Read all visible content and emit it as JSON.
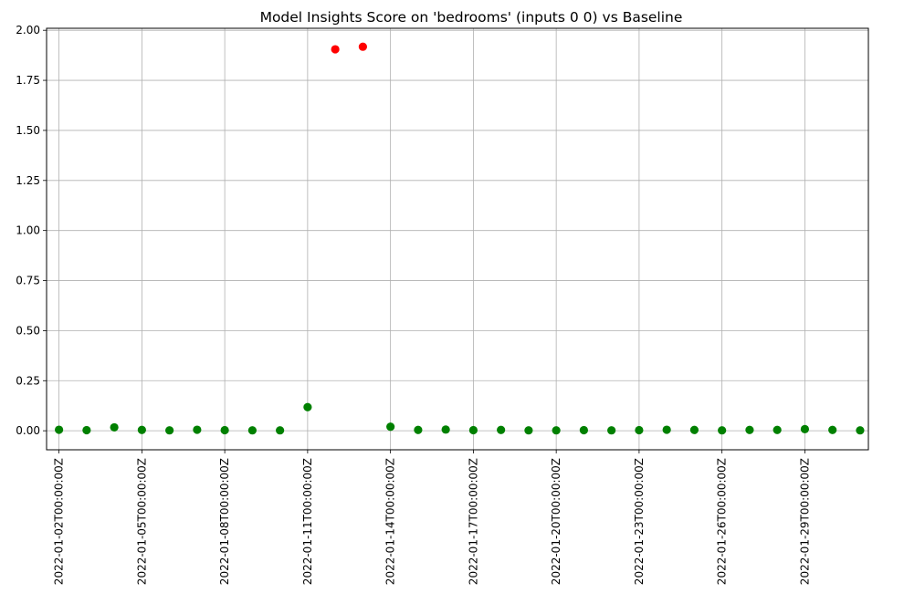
{
  "chart_data": {
    "type": "scatter",
    "title": "Model Insights Score on 'bedrooms' (inputs 0 0) vs Baseline",
    "xlabel": "",
    "ylabel": "",
    "x_tick_labels": [
      "2022-01-02T00:00:00Z",
      "2022-01-05T00:00:00Z",
      "2022-01-08T00:00:00Z",
      "2022-01-11T00:00:00Z",
      "2022-01-14T00:00:00Z",
      "2022-01-17T00:00:00Z",
      "2022-01-20T00:00:00Z",
      "2022-01-23T00:00:00Z",
      "2022-01-26T00:00:00Z",
      "2022-01-29T00:00:00Z"
    ],
    "y_tick_labels": [
      "0.00",
      "0.25",
      "0.50",
      "0.75",
      "1.00",
      "1.25",
      "1.50",
      "1.75",
      "2.00"
    ],
    "y_ticks": [
      0,
      0.25,
      0.5,
      0.75,
      1.0,
      1.25,
      1.5,
      1.75,
      2.0
    ],
    "ylim": [
      -0.095,
      2.01
    ],
    "xlim": [
      "2022-01-01T13:12:00Z",
      "2022-01-31T07:12:00Z"
    ],
    "grid": true,
    "colors": {
      "normal": "#008000",
      "alert": "#ff0000",
      "grid": "#b0b0b0"
    },
    "series": [
      {
        "x": [
          "2022-01-02T00:00:00Z",
          "2022-01-03T00:00:00Z",
          "2022-01-04T00:00:00Z",
          "2022-01-05T00:00:00Z",
          "2022-01-06T00:00:00Z",
          "2022-01-07T00:00:00Z",
          "2022-01-08T00:00:00Z",
          "2022-01-09T00:00:00Z",
          "2022-01-10T00:00:00Z",
          "2022-01-11T00:00:00Z",
          "2022-01-12T00:00:00Z",
          "2022-01-13T00:00:00Z",
          "2022-01-14T00:00:00Z",
          "2022-01-15T00:00:00Z",
          "2022-01-16T00:00:00Z",
          "2022-01-17T00:00:00Z",
          "2022-01-18T00:00:00Z",
          "2022-01-19T00:00:00Z",
          "2022-01-20T00:00:00Z",
          "2022-01-21T00:00:00Z",
          "2022-01-22T00:00:00Z",
          "2022-01-23T00:00:00Z",
          "2022-01-24T00:00:00Z",
          "2022-01-25T00:00:00Z",
          "2022-01-26T00:00:00Z",
          "2022-01-27T00:00:00Z",
          "2022-01-28T00:00:00Z",
          "2022-01-29T00:00:00Z",
          "2022-01-30T00:00:00Z",
          "2022-01-31T00:00:00Z"
        ],
        "values": [
          0.005,
          0.003,
          0.017,
          0.004,
          0.002,
          0.005,
          0.003,
          0.002,
          0.002,
          0.118,
          1.905,
          1.918,
          0.02,
          0.004,
          0.006,
          0.003,
          0.004,
          0.002,
          0.002,
          0.003,
          0.002,
          0.003,
          0.005,
          0.004,
          0.002,
          0.004,
          0.004,
          0.008,
          0.004,
          0.002
        ],
        "point_colors": [
          "#008000",
          "#008000",
          "#008000",
          "#008000",
          "#008000",
          "#008000",
          "#008000",
          "#008000",
          "#008000",
          "#008000",
          "#ff0000",
          "#ff0000",
          "#008000",
          "#008000",
          "#008000",
          "#008000",
          "#008000",
          "#008000",
          "#008000",
          "#008000",
          "#008000",
          "#008000",
          "#008000",
          "#008000",
          "#008000",
          "#008000",
          "#008000",
          "#008000",
          "#008000",
          "#008000"
        ]
      }
    ]
  }
}
